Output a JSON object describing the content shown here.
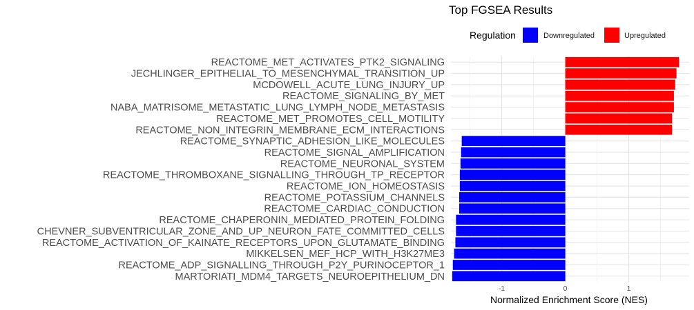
{
  "chart_data": {
    "type": "bar",
    "orientation": "horizontal",
    "title": "Top FGSEA Results",
    "xlabel": "Normalized Enrichment Score (NES)",
    "ylabel": "",
    "xlim": [
      -1.8,
      1.95
    ],
    "xticks": [
      -1,
      0,
      1
    ],
    "xtick_labels": [
      "-1",
      "0",
      "1"
    ],
    "grid": true,
    "legend": {
      "title": "Regulation",
      "position": "top",
      "entries": [
        {
          "label": "Downregulated",
          "color": "#0000ff"
        },
        {
          "label": "Upregulated",
          "color": "#ff0000"
        }
      ]
    },
    "categories": [
      "REACTOME_MET_ACTIVATES_PTK2_SIGNALING",
      "JECHLINGER_EPITHELIAL_TO_MESENCHYMAL_TRANSITION_UP",
      "MCDOWELL_ACUTE_LUNG_INJURY_UP",
      "REACTOME_SIGNALING_BY_MET",
      "NABA_MATRISOME_METASTATIC_LUNG_LYMPH_NODE_METASTASIS",
      "REACTOME_MET_PROMOTES_CELL_MOTILITY",
      "REACTOME_NON_INTEGRIN_MEMBRANE_ECM_INTERACTIONS",
      "REACTOME_SYNAPTIC_ADHESION_LIKE_MOLECULES",
      "REACTOME_SIGNAL_AMPLIFICATION",
      "REACTOME_NEURONAL_SYSTEM",
      "REACTOME_THROMBOXANE_SIGNALLING_THROUGH_TP_RECEPTOR",
      "REACTOME_ION_HOMEOSTASIS",
      "REACTOME_POTASSIUM_CHANNELS",
      "REACTOME_CARDIAC_CONDUCTION",
      "REACTOME_CHAPERONIN_MEDIATED_PROTEIN_FOLDING",
      "CHEVNER_SUBVENTRICULAR_ZONE_AND_UP_NEURON_FATE_COMMITTED_CELLS",
      "REACTOME_ACTIVATION_OF_KAINATE_RECEPTORS_UPON_GLUTAMATE_BINDING",
      "MIKKELSEN_MEF_HCP_WITH_H3K27ME3",
      "REACTOME_ADP_SIGNALLING_THROUGH_P2Y_PURINOCEPTOR_1",
      "MARTORIATI_MDM4_TARGETS_NEUROEPITHELIUM_DN"
    ],
    "values": [
      1.79,
      1.75,
      1.73,
      1.71,
      1.71,
      1.68,
      1.68,
      -1.63,
      -1.64,
      -1.65,
      -1.66,
      -1.66,
      -1.67,
      -1.67,
      -1.72,
      -1.72,
      -1.73,
      -1.75,
      -1.77,
      -1.78
    ],
    "regulation": [
      "Upregulated",
      "Upregulated",
      "Upregulated",
      "Upregulated",
      "Upregulated",
      "Upregulated",
      "Upregulated",
      "Downregulated",
      "Downregulated",
      "Downregulated",
      "Downregulated",
      "Downregulated",
      "Downregulated",
      "Downregulated",
      "Downregulated",
      "Downregulated",
      "Downregulated",
      "Downregulated",
      "Downregulated",
      "Downregulated"
    ]
  }
}
